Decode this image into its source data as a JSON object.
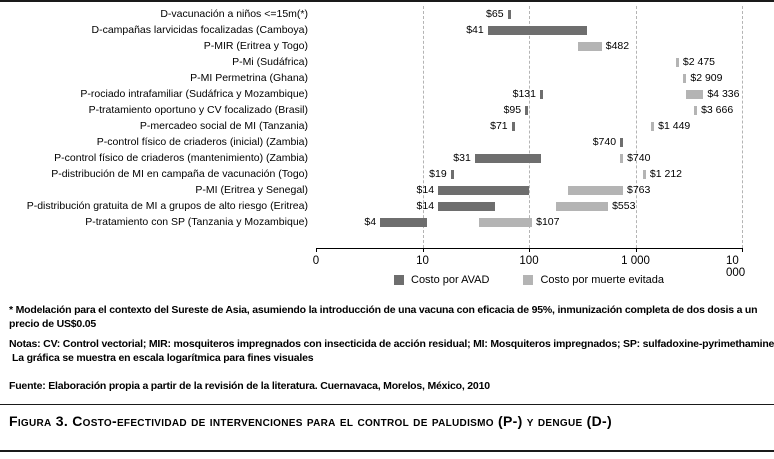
{
  "chart_data": {
    "type": "bar",
    "orientation": "horizontal",
    "scale": "log",
    "x_ticks": [
      "0",
      "10",
      "100",
      "1 000",
      "10 000"
    ],
    "x_tick_values": [
      1,
      10,
      100,
      1000,
      10000
    ],
    "grid": "dashed-vertical",
    "legend_position": "bottom-center",
    "legend": [
      {
        "label": "Costo por AVAD",
        "color": "#6e6e6e"
      },
      {
        "label": "Costo por muerte evitada",
        "color": "#b4b4b4"
      }
    ],
    "rows": [
      {
        "category": "D-vacunación a niños <=15m(*)",
        "avad": {
          "shape": "tick",
          "value": 65,
          "label": "$65",
          "label_side": "left"
        }
      },
      {
        "category": "D-campañas larvicidas focalizadas (Camboya)",
        "avad": {
          "shape": "bar",
          "min": 41,
          "max": 350,
          "label": "$41",
          "label_side": "left"
        }
      },
      {
        "category": "P-MIR (Eritrea y Togo)",
        "muerte": {
          "shape": "bar",
          "min": 290,
          "max": 482,
          "label": "$482",
          "label_side": "right"
        }
      },
      {
        "category": "P-Mi (Sudáfrica)",
        "muerte": {
          "shape": "tick",
          "value": 2475,
          "label": "$2 475",
          "label_side": "right"
        }
      },
      {
        "category": "P-MI Permetrina (Ghana)",
        "muerte": {
          "shape": "tick",
          "value": 2909,
          "label": "$2 909",
          "label_side": "right"
        }
      },
      {
        "category": "P-rociado intrafamiliar (Sudáfrica y Mozambique)",
        "avad": {
          "shape": "tick",
          "value": 131,
          "label": "$131",
          "label_side": "left"
        },
        "muerte": {
          "shape": "bar",
          "min": 3000,
          "max": 4336,
          "label": "$4 336",
          "label_side": "right"
        }
      },
      {
        "category": "P-tratamiento oportuno y CV focalizado (Brasil)",
        "avad": {
          "shape": "tick",
          "value": 95,
          "label": "$95",
          "label_side": "left"
        },
        "muerte": {
          "shape": "tick",
          "value": 3666,
          "label": "$3 666",
          "label_side": "right"
        }
      },
      {
        "category": "P-mercadeo social de MI (Tanzania)",
        "avad": {
          "shape": "tick",
          "value": 71,
          "label": "$71",
          "label_side": "left"
        },
        "muerte": {
          "shape": "tick",
          "value": 1449,
          "label": "$1 449",
          "label_side": "right"
        }
      },
      {
        "category": "P-control físico de criaderos (inicial) (Zambia)",
        "avad": {
          "shape": "tick",
          "value": 740,
          "label": "$740",
          "label_side": "left"
        }
      },
      {
        "category": "P-control físico de criaderos (mantenimiento) (Zambia)",
        "avad": {
          "shape": "bar",
          "min": 31,
          "max": 130,
          "label": "$31",
          "label_side": "left"
        },
        "muerte": {
          "shape": "tick",
          "value": 740,
          "label": "$740",
          "label_side": "right"
        }
      },
      {
        "category": "P-distribución de MI en campaña de vacunación (Togo)",
        "avad": {
          "shape": "tick",
          "value": 19,
          "label": "$19",
          "label_side": "left"
        },
        "muerte": {
          "shape": "tick",
          "value": 1212,
          "label": "$1 212",
          "label_side": "right"
        }
      },
      {
        "category": "P-MI (Eritrea y Senegal)",
        "avad": {
          "shape": "bar",
          "min": 14,
          "max": 100,
          "label": "$14",
          "label_side": "left"
        },
        "muerte": {
          "shape": "bar",
          "min": 230,
          "max": 763,
          "label": "$763",
          "label_side": "right"
        }
      },
      {
        "category": "P-distribución gratuita de MI a grupos de alto riesgo (Eritrea)",
        "avad": {
          "shape": "bar",
          "min": 14,
          "max": 48,
          "label": "$14",
          "label_side": "left"
        },
        "muerte": {
          "shape": "bar",
          "min": 180,
          "max": 553,
          "label": "$553",
          "label_side": "right"
        }
      },
      {
        "category": "P-tratamiento con SP (Tanzania y Mozambique)",
        "avad": {
          "shape": "bar",
          "min": 4,
          "max": 11,
          "label": "$4",
          "label_side": "left"
        },
        "muerte": {
          "shape": "bar",
          "min": 34,
          "max": 107,
          "label": "$107",
          "label_side": "right"
        }
      }
    ]
  },
  "footnotes": {
    "asterisk": "* Modelación para el contexto del Sureste de Asia, asumiendo la introducción de una vacuna con eficacia de 95%, inmunización completa de dos dosis a un precio de US$0.05",
    "notas_line1": "Notas: CV: Control vectorial; MIR: mosquiteros impregnados con insecticida de acción residual; MI: Mosquiteros impregnados; SP: sulfadoxine-pyrimethamine.",
    "notas_line2": "La gráfica se muestra en escala logarítmica para fines visuales",
    "fuente": "Fuente: Elaboración propia a partir de la revisión de la literatura. Cuernavaca, Morelos, México, 2010"
  },
  "caption": {
    "text": "Figura 3. Costo-efectividad de intervenciones para el control de paludismo (P-) y dengue (D-)"
  }
}
